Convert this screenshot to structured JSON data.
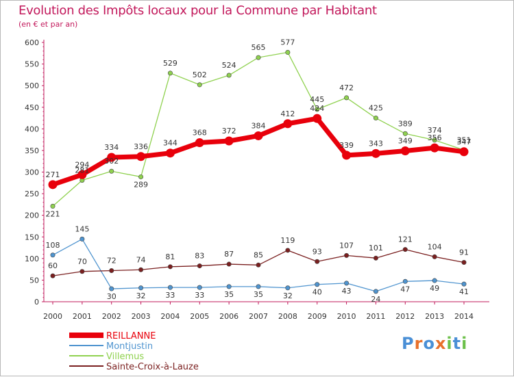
{
  "chart_data": {
    "type": "line",
    "title": "Evolution des Impôts locaux pour la Commune par Habitant",
    "subtitle": "(en € et par an)",
    "x": [
      "2000",
      "2001",
      "2002",
      "2003",
      "2004",
      "2005",
      "2006",
      "2007",
      "2008",
      "2009",
      "2010",
      "2011",
      "2012",
      "2013",
      "2014"
    ],
    "ylim": [
      0,
      600
    ],
    "yticks": [
      "0",
      "50",
      "100",
      "150",
      "200",
      "250",
      "300",
      "350",
      "400",
      "450",
      "500",
      "550",
      "600"
    ],
    "grid": false,
    "legend_position": "bottom-left",
    "series": [
      {
        "name": "REILLANNE",
        "color": "#e8000b",
        "values": [
          271,
          294,
          334,
          336,
          344,
          368,
          372,
          384,
          412,
          424,
          339,
          343,
          349,
          356,
          347
        ],
        "labels": [
          "271",
          "294",
          "334",
          "336",
          "344",
          "368",
          "372",
          "384",
          "412",
          "424",
          "339",
          "343",
          "349",
          "356",
          "347"
        ]
      },
      {
        "name": "Montjustin",
        "color": "#4f94cf",
        "values": [
          108,
          145,
          30,
          32,
          33,
          33,
          35,
          35,
          32,
          40,
          43,
          24,
          47,
          49,
          41
        ],
        "labels": [
          "108",
          "145",
          "30",
          "32",
          "33",
          "33",
          "35",
          "35",
          "32",
          "40",
          "43",
          "24",
          "47",
          "49",
          "41"
        ]
      },
      {
        "name": "Villemus",
        "color": "#8fd14f",
        "values": [
          221,
          281,
          302,
          289,
          529,
          502,
          524,
          565,
          577,
          445,
          472,
          425,
          389,
          374,
          351
        ],
        "labels": [
          "221",
          "281",
          "302",
          "289",
          "529",
          "502",
          "524",
          "565",
          "577",
          "445",
          "472",
          "425",
          "389",
          "374",
          "351"
        ]
      },
      {
        "name": "Sainte-Croix-à-Lauze",
        "color": "#7a1f1f",
        "values": [
          60,
          70,
          72,
          74,
          81,
          83,
          87,
          85,
          119,
          93,
          107,
          101,
          121,
          104,
          91
        ],
        "labels": [
          "60",
          "70",
          "72",
          "74",
          "81",
          "83",
          "87",
          "85",
          "119",
          "93",
          "107",
          "101",
          "121",
          "104",
          "91"
        ]
      }
    ]
  },
  "logo": {
    "text": "Proxiti",
    "colors": [
      "#4a8fd6",
      "#e8702a",
      "#4a8fd6",
      "#e8702a",
      "#6cc04a",
      "#4a8fd6",
      "#6cc04a"
    ]
  }
}
